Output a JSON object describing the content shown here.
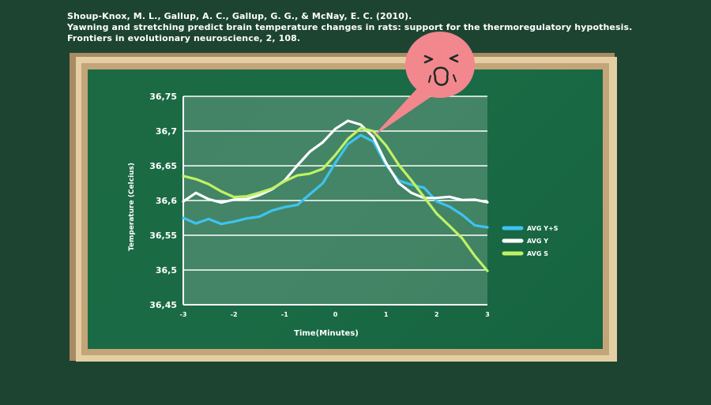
{
  "citation": {
    "line1": "Shoup-Knox, M. L., Gallup, A. C., Gallup, G. G., & McNay, E. C. (2010).",
    "line2": "Yawning and stretching predict brain temperature changes in rats: support for the thermoregulatory hypothesis.",
    "line3": "Frontiers in evolutionary neuroscience, 2, 108."
  },
  "colors": {
    "background": "#1d4430",
    "board": "#1a6b45",
    "series_ys": "#3ec3f0",
    "series_y": "#ffffff",
    "series_s": "#bff264",
    "bubble": "#f2878e"
  },
  "mascot": {
    "icon": "crying-face-speech-bubble-icon"
  },
  "chart_data": {
    "type": "line",
    "title": "",
    "xlabel": "Time(Minutes)",
    "ylabel": "Temperature (Celcius)",
    "xlim": [
      -3,
      3
    ],
    "ylim": [
      36.45,
      36.75
    ],
    "xticks": [
      "-3",
      "-2",
      "-1",
      "0",
      "1",
      "2",
      "3"
    ],
    "yticks": [
      "36.45",
      "36.5",
      "36.55",
      "36.6",
      "36.65",
      "36.7",
      "36.75"
    ],
    "grid": true,
    "legend_position": "right",
    "x": [
      -3,
      -2.75,
      -2.5,
      -2.25,
      -2,
      -1.75,
      -1.5,
      -1.25,
      -1,
      -0.75,
      -0.5,
      -0.25,
      0,
      0.25,
      0.5,
      0.75,
      1,
      1.25,
      1.5,
      1.75,
      2,
      2.25,
      2.5,
      2.75,
      3
    ],
    "series": [
      {
        "name": "AVG Y+S",
        "color": "#3ec3f0",
        "values": [
          36.575,
          36.568,
          36.572,
          36.567,
          36.57,
          36.573,
          36.578,
          36.585,
          36.59,
          36.595,
          36.608,
          36.625,
          36.655,
          36.68,
          36.695,
          36.685,
          36.65,
          36.63,
          36.622,
          36.618,
          36.6,
          36.59,
          36.58,
          36.565,
          36.56
        ]
      },
      {
        "name": "AVG Y",
        "color": "#ffffff",
        "values": [
          36.6,
          36.61,
          36.602,
          36.598,
          36.6,
          36.603,
          36.608,
          36.615,
          36.63,
          36.65,
          36.67,
          36.685,
          36.702,
          36.715,
          36.71,
          36.69,
          36.655,
          36.625,
          36.61,
          36.605,
          36.603,
          36.605,
          36.602,
          36.6,
          36.598
        ]
      },
      {
        "name": "AVG S",
        "color": "#bff264",
        "values": [
          36.635,
          36.63,
          36.625,
          36.612,
          36.605,
          36.607,
          36.61,
          36.618,
          36.628,
          36.635,
          36.64,
          36.645,
          36.665,
          36.69,
          36.703,
          36.7,
          36.68,
          36.65,
          36.63,
          36.605,
          36.58,
          36.565,
          36.545,
          36.52,
          36.5
        ]
      }
    ]
  }
}
